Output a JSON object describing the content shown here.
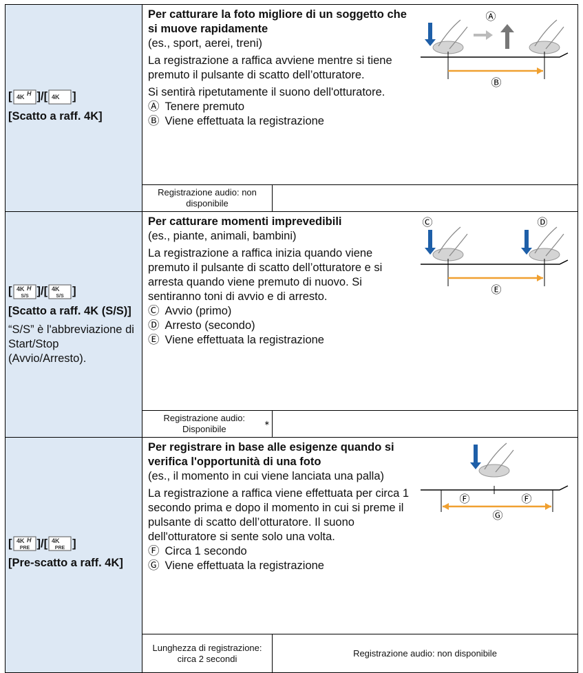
{
  "rows": [
    {
      "icon_main": "4K",
      "icon_sup": "H",
      "icon_sub": null,
      "brackets": [
        "[",
        "]/[",
        "]"
      ],
      "mode_label": "[Scatto a raff. 4K]",
      "mode_note": null,
      "heading": "Per catturare la foto migliore di un soggetto che si muove rapidamente",
      "example": "(es., sport, aerei, treni)",
      "paragraphs": [
        "La registrazione a raffica avviene mentre si tiene premuto il pulsante di scatto dell’otturatore.",
        "Si sentirà ripetutamente il suono dell'otturatore."
      ],
      "items": [
        {
          "mark": "Ⓐ",
          "text": "Tenere premuto"
        },
        {
          "mark": "Ⓑ",
          "text": "Viene effettuata la registrazione"
        }
      ],
      "diagram_labels": [
        "Ⓐ",
        "Ⓑ"
      ],
      "footer": [
        {
          "text": "Registrazione audio: non disponibile",
          "sup": null
        }
      ]
    },
    {
      "icon_main": "4K",
      "icon_sup": "H",
      "icon_sub": "S/S",
      "brackets": [
        "[",
        "]/[",
        "]"
      ],
      "mode_label": "[Scatto a raff. 4K (S/S)]",
      "mode_note": "“S/S” è l'abbreviazione di Start/Stop (Avvio/Arresto).",
      "heading": "Per catturare momenti imprevedibili",
      "example": "(es., piante, animali, bambini)",
      "paragraphs": [
        "La registrazione a raffica inizia quando viene premuto il pulsante di scatto dell’otturatore e si arresta quando viene premuto di nuovo. Si sentiranno toni di avvio e di arresto."
      ],
      "items": [
        {
          "mark": "Ⓒ",
          "text": "Avvio (primo)"
        },
        {
          "mark": "Ⓓ",
          "text": "Arresto (secondo)"
        },
        {
          "mark": "Ⓔ",
          "text": "Viene effettuata la registrazione"
        }
      ],
      "diagram_labels": [
        "Ⓒ",
        "Ⓓ",
        "Ⓔ"
      ],
      "footer": [
        {
          "text": "Registrazione audio: Disponibile",
          "sup": "∗"
        }
      ]
    },
    {
      "icon_main": "4K",
      "icon_sup": "H",
      "icon_sub": "PRE",
      "brackets": [
        "[",
        "]/[",
        "]"
      ],
      "mode_label": "[Pre-scatto a raff. 4K]",
      "mode_note": null,
      "heading": "Per registrare in base alle esigenze quando si verifica l'opportunità di una foto",
      "example": "(es., il momento in cui viene lanciata una palla)",
      "paragraphs": [
        "La registrazione a raffica viene effettuata per circa 1 secondo prima e dopo il momento in cui si preme il pulsante di scatto dell’otturatore. Il suono dell'otturatore si sente solo una volta."
      ],
      "items": [
        {
          "mark": "Ⓕ",
          "text": "Circa 1 secondo"
        },
        {
          "mark": "Ⓖ",
          "text": "Viene effettuata la registrazione"
        }
      ],
      "diagram_labels": [
        "Ⓕ",
        "Ⓕ",
        "Ⓖ"
      ],
      "footer": [
        {
          "text": "Lunghezza di registrazione: circa 2 secondi",
          "sup": null
        },
        {
          "text": "Registrazione audio: non disponibile",
          "sup": null
        }
      ]
    }
  ]
}
